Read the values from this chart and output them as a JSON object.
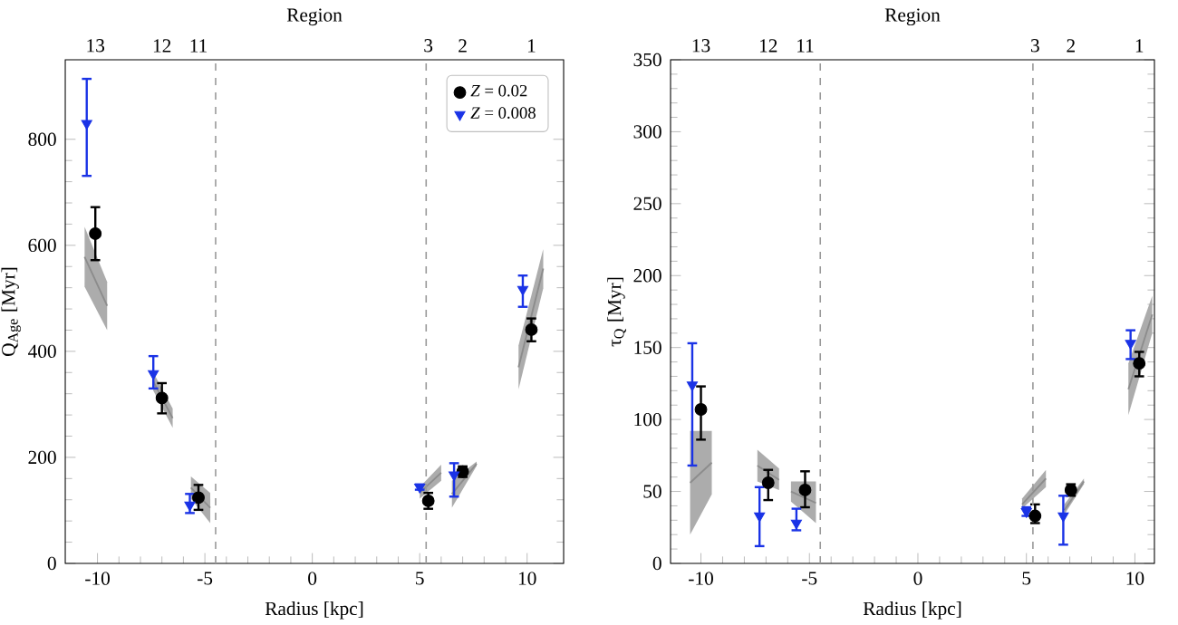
{
  "chart_data": [
    {
      "type": "scatter",
      "xlabel": "Radius [kpc]",
      "ylabel": "Q$_{Age}$ [Myr]",
      "xlim": [
        -11.5,
        11.7
      ],
      "ylim": [
        0,
        950
      ],
      "xticks": [
        -10,
        -5,
        0,
        5,
        10
      ],
      "yticks": [
        0,
        200,
        400,
        600,
        800
      ],
      "annotations": [
        "Region",
        "13",
        "12",
        "11",
        "3",
        "2",
        "1"
      ],
      "ref_lines": [
        {
          "axis": "x",
          "value": -4.5,
          "color": "#999999",
          "line_style": "dashed"
        },
        {
          "axis": "x",
          "value": 5.3,
          "color": "#999999",
          "line_style": "dashed"
        }
      ],
      "legend": "top right",
      "series": [
        {
          "type": "line",
          "color": "#8c8c8c",
          "x": [
            -10.6,
            -9.55
          ],
          "values": [
            578,
            486
          ],
          "lower": [
            522,
            440
          ],
          "upper": [
            635,
            531
          ]
        },
        {
          "type": "line",
          "color": "#8c8c8c",
          "x": [
            -7.4,
            -6.5
          ],
          "values": [
            343,
            274
          ],
          "lower": [
            326,
            256
          ],
          "upper": [
            360,
            292
          ]
        },
        {
          "type": "line",
          "color": "#8c8c8c",
          "x": [
            -5.65,
            -4.75
          ],
          "values": [
            143,
            105
          ],
          "lower": [
            122,
            76
          ],
          "upper": [
            164,
            133
          ]
        },
        {
          "type": "line",
          "color": "#8c8c8c",
          "x": [
            5.0,
            6.0
          ],
          "values": [
            133,
            171
          ],
          "lower": [
            122,
            156
          ],
          "upper": [
            144,
            186
          ]
        },
        {
          "type": "line",
          "color": "#8c8c8c",
          "x": [
            6.5,
            7.65
          ],
          "values": [
            131,
            188
          ],
          "lower": [
            105,
            184
          ],
          "upper": [
            156,
            192
          ]
        },
        {
          "type": "line",
          "color": "#8c8c8c",
          "x": [
            9.6,
            10.75
          ],
          "values": [
            370,
            556
          ],
          "lower": [
            328,
            519
          ],
          "upper": [
            411,
            593
          ]
        },
        {
          "type": "scatter",
          "name": "*Z* = 0.02",
          "color": "#000000",
          "marker": "circle",
          "x": [
            -10.1,
            -7.0,
            -5.3,
            5.4,
            7.0,
            10.2
          ],
          "values": [
            622,
            312,
            124,
            118,
            173,
            441
          ],
          "errors": [
            [
              572,
              672
            ],
            [
              283,
              340
            ],
            [
              101,
              148
            ],
            [
              103,
              133
            ],
            [
              163,
              183
            ],
            [
              419,
              462
            ]
          ]
        },
        {
          "type": "scatter",
          "name": "*Z* = 0.008",
          "color": "#1a33e6",
          "marker": "triangle",
          "x": [
            -10.5,
            -7.4,
            -5.7,
            5.0,
            6.6,
            9.8
          ],
          "values": [
            830,
            358,
            110,
            144,
            167,
            517
          ],
          "errors": [
            [
              731,
              914
            ],
            [
              330,
              391
            ],
            [
              95,
              131
            ],
            [
              139,
              149
            ],
            [
              126,
              189
            ],
            [
              484,
              543
            ]
          ]
        }
      ]
    },
    {
      "type": "scatter",
      "xlabel": "Radius [kpc]",
      "ylabel": "τ$_{Q}$ [Myr]",
      "xlim": [
        -11.4,
        10.9
      ],
      "ylim": [
        0,
        350
      ],
      "xticks": [
        -10,
        -5,
        0,
        5,
        10
      ],
      "yticks": [
        0,
        50,
        100,
        150,
        200,
        250,
        300,
        350
      ],
      "annotations": [
        "Region",
        "13",
        "12",
        "11",
        "3",
        "2",
        "1"
      ],
      "ref_lines": [
        {
          "axis": "x",
          "value": -4.5,
          "color": "#999999",
          "line_style": "dashed"
        },
        {
          "axis": "x",
          "value": 5.3,
          "color": "#999999",
          "line_style": "dashed"
        }
      ],
      "series": [
        {
          "type": "line",
          "color": "#8c8c8c",
          "x": [
            -10.5,
            -9.5
          ],
          "values": [
            56,
            70
          ],
          "lower": [
            20,
            48
          ],
          "upper": [
            92,
            92
          ]
        },
        {
          "type": "line",
          "color": "#8c8c8c",
          "x": [
            -7.4,
            -6.4
          ],
          "values": [
            68,
            58
          ],
          "lower": [
            57,
            51
          ],
          "upper": [
            79,
            66
          ]
        },
        {
          "type": "line",
          "color": "#8c8c8c",
          "x": [
            -5.85,
            -4.7
          ],
          "values": [
            50,
            42
          ],
          "lower": [
            43,
            28
          ],
          "upper": [
            57,
            57
          ]
        },
        {
          "type": "line",
          "color": "#8c8c8c",
          "x": [
            4.8,
            5.9
          ],
          "values": [
            41,
            59
          ],
          "lower": [
            38,
            53
          ],
          "upper": [
            45,
            65
          ]
        },
        {
          "type": "line",
          "color": "#8c8c8c",
          "x": [
            6.75,
            7.65
          ],
          "values": [
            37,
            57
          ],
          "lower": [
            34,
            55
          ],
          "upper": [
            41,
            59
          ]
        },
        {
          "type": "line",
          "color": "#8c8c8c",
          "x": [
            9.7,
            10.8
          ],
          "values": [
            121,
            173
          ],
          "lower": [
            103,
            160
          ],
          "upper": [
            139,
            186
          ]
        },
        {
          "type": "scatter",
          "color": "#000000",
          "marker": "circle",
          "x": [
            -10.0,
            -6.9,
            -5.2,
            5.4,
            7.05,
            10.2
          ],
          "values": [
            107,
            56,
            51,
            33,
            51,
            139
          ],
          "errors": [
            [
              86,
              123
            ],
            [
              44,
              65
            ],
            [
              39,
              64
            ],
            [
              28,
              41
            ],
            [
              47,
              55
            ],
            [
              130,
              147
            ]
          ]
        },
        {
          "type": "scatter",
          "color": "#1a33e6",
          "marker": "triangle",
          "x": [
            -10.4,
            -7.3,
            -5.6,
            5.0,
            6.7,
            9.8
          ],
          "values": [
            124,
            33,
            28,
            36,
            33,
            153
          ],
          "errors": [
            [
              68,
              153
            ],
            [
              12,
              53
            ],
            [
              23,
              38
            ],
            [
              33,
              39
            ],
            [
              13,
              47
            ],
            [
              142,
              162
            ]
          ]
        }
      ]
    }
  ]
}
